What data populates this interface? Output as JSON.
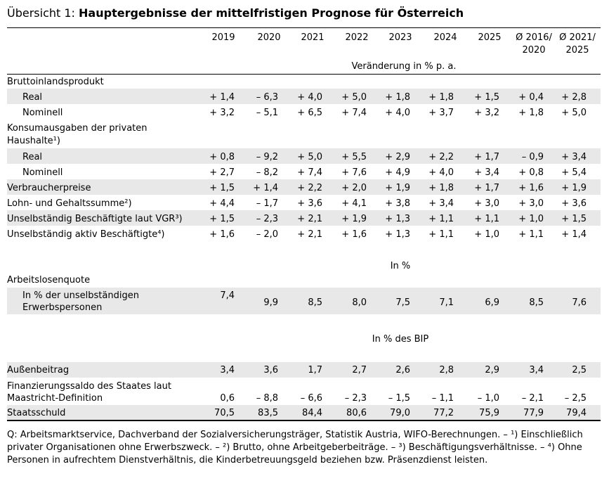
{
  "title": {
    "prefix": "Übersicht 1: ",
    "main": "Hauptergebnisse der mittelfristigen Prognose für Österreich"
  },
  "columns": [
    {
      "l1": "2019",
      "l2": ""
    },
    {
      "l1": "2020",
      "l2": ""
    },
    {
      "l1": "2021",
      "l2": ""
    },
    {
      "l1": "2022",
      "l2": ""
    },
    {
      "l1": "2023",
      "l2": ""
    },
    {
      "l1": "2024",
      "l2": ""
    },
    {
      "l1": "2025",
      "l2": ""
    },
    {
      "l1": "Ø 2016/",
      "l2": "2020"
    },
    {
      "l1": "Ø 2021/",
      "l2": "2025"
    }
  ],
  "units": {
    "change": "Veränderung in % p. a.",
    "percent": "In %",
    "gdp": "In % des BIP"
  },
  "rows": {
    "bip": {
      "label": "Bruttoinlandsprodukt"
    },
    "bip_real": {
      "label": "Real",
      "values": [
        "+ 1,4",
        "– 6,3",
        "+ 4,0",
        "+ 5,0",
        "+ 1,8",
        "+ 1,8",
        "+ 1,5",
        "+ 0,4",
        "+ 2,8"
      ]
    },
    "bip_nom": {
      "label": "Nominell",
      "values": [
        "+ 3,2",
        "– 5,1",
        "+ 6,5",
        "+ 7,4",
        "+ 4,0",
        "+ 3,7",
        "+ 3,2",
        "+ 1,8",
        "+ 5,0"
      ]
    },
    "konsum": {
      "label1": "Konsumausgaben der privaten",
      "label2": "Haushalte¹)"
    },
    "konsum_real": {
      "label": "Real",
      "values": [
        "+ 0,8",
        "– 9,2",
        "+ 5,0",
        "+ 5,5",
        "+ 2,9",
        "+ 2,2",
        "+ 1,7",
        "– 0,9",
        "+ 3,4"
      ]
    },
    "konsum_nom": {
      "label": "Nominell",
      "values": [
        "+ 2,7",
        "– 8,2",
        "+ 7,4",
        "+ 7,6",
        "+ 4,9",
        "+ 4,0",
        "+ 3,4",
        "+ 0,8",
        "+ 5,4"
      ]
    },
    "vpi": {
      "label": "Verbraucherpreise",
      "values": [
        "+ 1,5",
        "+ 1,4",
        "+ 2,2",
        "+ 2,0",
        "+ 1,9",
        "+ 1,8",
        "+ 1,7",
        "+ 1,6",
        "+ 1,9"
      ]
    },
    "lohn": {
      "label": "Lohn- und Gehaltssumme²)",
      "values": [
        "+ 4,4",
        "– 1,7",
        "+ 3,6",
        "+ 4,1",
        "+ 3,8",
        "+ 3,4",
        "+ 3,0",
        "+ 3,0",
        "+ 3,6"
      ]
    },
    "vgr": {
      "label": "Unselbständig Beschäftigte laut VGR³)",
      "values": [
        "+ 1,5",
        "– 2,3",
        "+ 2,1",
        "+ 1,9",
        "+ 1,3",
        "+ 1,1",
        "+ 1,1",
        "+ 1,0",
        "+ 1,5"
      ]
    },
    "aktiv": {
      "label": "Unselbständig aktiv Beschäftigte⁴)",
      "values": [
        "+ 1,6",
        "– 2,0",
        "+ 2,1",
        "+ 1,6",
        "+ 1,3",
        "+ 1,1",
        "+ 1,0",
        "+ 1,1",
        "+ 1,4"
      ]
    },
    "alq": {
      "label": "Arbeitslosenquote"
    },
    "alq_sub": {
      "label1": "In % der unselbständigen",
      "label2": "Erwerbspersonen",
      "values": [
        "7,4",
        "9,9",
        "8,5",
        "8,0",
        "7,5",
        "7,1",
        "6,9",
        "8,5",
        "7,6"
      ]
    },
    "aussen": {
      "label": "Außenbeitrag",
      "values": [
        "3,4",
        "3,6",
        "1,7",
        "2,7",
        "2,6",
        "2,8",
        "2,9",
        "3,4",
        "2,5"
      ]
    },
    "saldo": {
      "label1": "Finanzierungssaldo des Staates laut",
      "label2": "Maastricht-Definition",
      "values": [
        "0,6",
        "– 8,8",
        "– 6,6",
        "– 2,3",
        "– 1,5",
        "– 1,1",
        "– 1,0",
        "– 2,1",
        "– 2,5"
      ]
    },
    "schuld": {
      "label": "Staatsschuld",
      "values": [
        "70,5",
        "83,5",
        "84,4",
        "80,6",
        "79,0",
        "77,2",
        "75,9",
        "77,9",
        "79,4"
      ]
    }
  },
  "footnote": "Q: Arbeitsmarktservice, Dachverband der Sozialversicherungsträger, Statistik Austria, WIFO-Berechnungen. – ¹) Einschließlich privater Organisationen ohne Erwerbszweck. – ²) Brutto, ohne Arbeitgeberbeiträge. – ³) Beschäftigungsverhältnisse. – ⁴) Ohne Personen in aufrechtem Dienstverhältnis, die Kinderbetreuungsgeld beziehen bzw. Präsenzdienst leisten."
}
